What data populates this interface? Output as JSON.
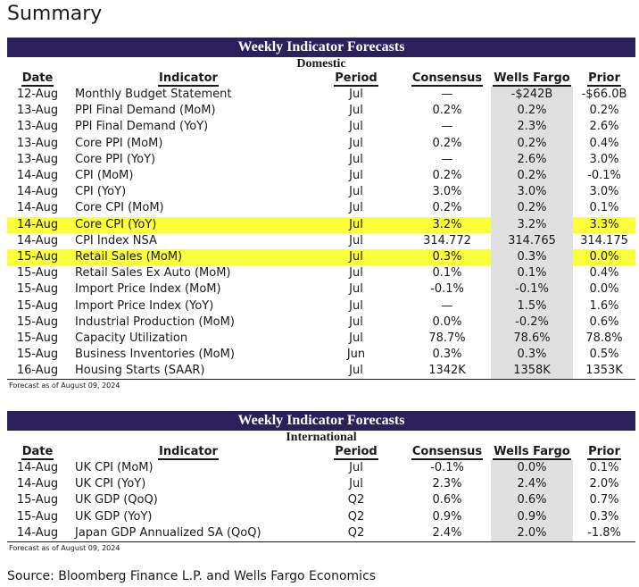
{
  "page_title": "Summary",
  "columns": {
    "date": "Date",
    "indicator": "Indicator",
    "period": "Period",
    "consensus": "Consensus",
    "wells_fargo": "Wells Fargo",
    "prior": "Prior"
  },
  "highlight_color": "#fbff3c",
  "banner_color": "#2b1f5c",
  "domestic": {
    "banner": "Weekly Indicator Forecasts",
    "subtitle": "Domestic",
    "rows": [
      {
        "date": "12-Aug",
        "indicator": "Monthly Budget Statement",
        "period": "Jul",
        "consensus": "—",
        "wells_fargo": "-$242B",
        "prior": "-$66.0B",
        "highlight": false
      },
      {
        "date": "13-Aug",
        "indicator": "PPI Final Demand (MoM)",
        "period": "Jul",
        "consensus": "0.2%",
        "wells_fargo": "0.2%",
        "prior": "0.2%",
        "highlight": false
      },
      {
        "date": "13-Aug",
        "indicator": "PPI Final Demand (YoY)",
        "period": "Jul",
        "consensus": "—",
        "wells_fargo": "2.3%",
        "prior": "2.6%",
        "highlight": false
      },
      {
        "date": "13-Aug",
        "indicator": "Core PPI (MoM)",
        "period": "Jul",
        "consensus": "0.2%",
        "wells_fargo": "0.2%",
        "prior": "0.4%",
        "highlight": false
      },
      {
        "date": "13-Aug",
        "indicator": "Core PPI (YoY)",
        "period": "Jul",
        "consensus": "—",
        "wells_fargo": "2.6%",
        "prior": "3.0%",
        "highlight": false
      },
      {
        "date": "14-Aug",
        "indicator": "CPI (MoM)",
        "period": "Jul",
        "consensus": "0.2%",
        "wells_fargo": "0.2%",
        "prior": "-0.1%",
        "highlight": false
      },
      {
        "date": "14-Aug",
        "indicator": "CPI (YoY)",
        "period": "Jul",
        "consensus": "3.0%",
        "wells_fargo": "3.0%",
        "prior": "3.0%",
        "highlight": false
      },
      {
        "date": "14-Aug",
        "indicator": "Core CPI (MoM)",
        "period": "Jul",
        "consensus": "0.2%",
        "wells_fargo": "0.2%",
        "prior": "0.1%",
        "highlight": false
      },
      {
        "date": "14-Aug",
        "indicator": "Core CPI (YoY)",
        "period": "Jul",
        "consensus": "3.2%",
        "wells_fargo": "3.2%",
        "prior": "3.3%",
        "highlight": true
      },
      {
        "date": "14-Aug",
        "indicator": "CPI Index NSA",
        "period": "Jul",
        "consensus": "314.772",
        "wells_fargo": "314.765",
        "prior": "314.175",
        "highlight": false
      },
      {
        "date": "15-Aug",
        "indicator": "Retail Sales (MoM)",
        "period": "Jul",
        "consensus": "0.3%",
        "wells_fargo": "0.3%",
        "prior": "0.0%",
        "highlight": true
      },
      {
        "date": "15-Aug",
        "indicator": "Retail Sales Ex Auto (MoM)",
        "period": "Jul",
        "consensus": "0.1%",
        "wells_fargo": "0.1%",
        "prior": "0.4%",
        "highlight": false
      },
      {
        "date": "15-Aug",
        "indicator": "Import Price Index (MoM)",
        "period": "Jul",
        "consensus": "-0.1%",
        "wells_fargo": "-0.1%",
        "prior": "0.0%",
        "highlight": false
      },
      {
        "date": "15-Aug",
        "indicator": "Import Price Index (YoY)",
        "period": "Jul",
        "consensus": "—",
        "wells_fargo": "1.5%",
        "prior": "1.6%",
        "highlight": false
      },
      {
        "date": "15-Aug",
        "indicator": "Industrial Production (MoM)",
        "period": "Jul",
        "consensus": "0.0%",
        "wells_fargo": "-0.2%",
        "prior": "0.6%",
        "highlight": false
      },
      {
        "date": "15-Aug",
        "indicator": "Capacity Utilization",
        "period": "Jul",
        "consensus": "78.7%",
        "wells_fargo": "78.6%",
        "prior": "78.8%",
        "highlight": false
      },
      {
        "date": "15-Aug",
        "indicator": "Business Inventories (MoM)",
        "period": "Jun",
        "consensus": "0.3%",
        "wells_fargo": "0.3%",
        "prior": "0.5%",
        "highlight": false
      },
      {
        "date": "16-Aug",
        "indicator": "Housing Starts (SAAR)",
        "period": "Jul",
        "consensus": "1342K",
        "wells_fargo": "1358K",
        "prior": "1353K",
        "highlight": false
      }
    ],
    "footnote": "Forecast as of August 09, 2024"
  },
  "international": {
    "banner": "Weekly Indicator Forecasts",
    "subtitle": "International",
    "rows": [
      {
        "date": "14-Aug",
        "indicator": "UK CPI (MoM)",
        "period": "Jul",
        "consensus": "-0.1%",
        "wells_fargo": "0.0%",
        "prior": "0.1%"
      },
      {
        "date": "14-Aug",
        "indicator": "UK CPI (YoY)",
        "period": "Jul",
        "consensus": "2.3%",
        "wells_fargo": "2.4%",
        "prior": "2.0%"
      },
      {
        "date": "15-Aug",
        "indicator": "UK GDP (QoQ)",
        "period": "Q2",
        "consensus": "0.6%",
        "wells_fargo": "0.6%",
        "prior": "0.7%"
      },
      {
        "date": "15-Aug",
        "indicator": "UK GDP (YoY)",
        "period": "Q2",
        "consensus": "0.9%",
        "wells_fargo": "0.9%",
        "prior": "0.3%"
      },
      {
        "date": "14-Aug",
        "indicator": "Japan GDP Annualized SA (QoQ)",
        "period": "Q2",
        "consensus": "2.4%",
        "wells_fargo": "2.0%",
        "prior": "-1.8%"
      }
    ],
    "footnote": "Forecast as of August 09, 2024"
  },
  "source": "Source: Bloomberg Finance L.P. and Wells Fargo Economics"
}
